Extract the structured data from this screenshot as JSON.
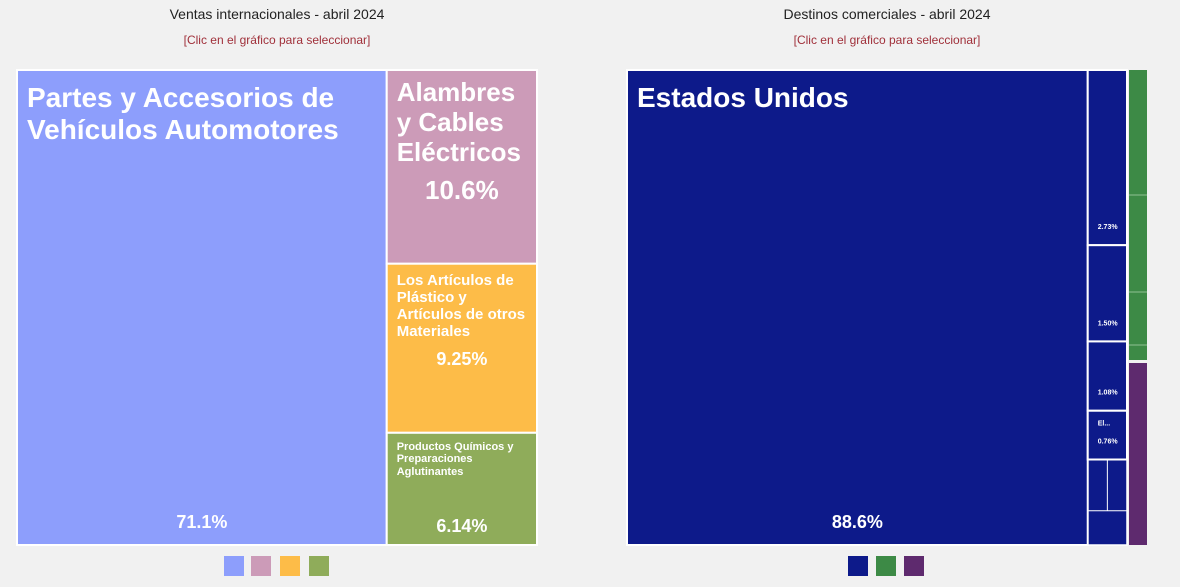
{
  "chart_data": [
    {
      "type": "treemap",
      "title": "Ventas internacionales - abril 2024",
      "subtitle": "[Clic en el gráfico para seleccionar]",
      "labels": [
        "Partes y Accesorios de Vehículos Automotores",
        "Alambres y Cables Eléctricos",
        "Los Artículos de Plástico y Artículos de otros Materiales",
        "Productos Químicos y Preparaciones Aglutinantes"
      ],
      "values": [
        71.1,
        10.6,
        9.25,
        6.14
      ],
      "value_labels": [
        "71.1%",
        "10.6%",
        "9.25%",
        "6.14%"
      ],
      "colors": [
        "#8d9efc",
        "#cc9bb8",
        "#fdbc48",
        "#8fac5a"
      ]
    },
    {
      "type": "treemap",
      "title": "Destinos comerciales - abril 2024",
      "subtitle": "[Clic en el gráfico para seleccionar]",
      "labels": [
        "Estados Unidos",
        null,
        null,
        null,
        "El..."
      ],
      "values": [
        88.6,
        2.73,
        1.5,
        1.08,
        0.76
      ],
      "value_labels": [
        "88.6%",
        "2.73%",
        "1.50%",
        "1.08%",
        "0.76%"
      ],
      "colors": [
        "#0d1a8a",
        "#0d1a8a",
        "#0d1a8a",
        "#0d1a8a",
        "#0d1a8a"
      ]
    }
  ]
}
